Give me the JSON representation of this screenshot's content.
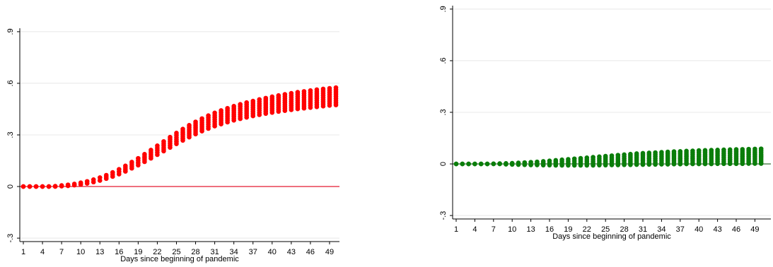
{
  "chart_data": [
    {
      "type": "scatter",
      "title": "",
      "xlabel": "Days since beginning of pandemic",
      "ylabel": "",
      "x_ticks": [
        "1",
        "4",
        "7",
        "10",
        "13",
        "16",
        "19",
        "22",
        "25",
        "28",
        "31",
        "34",
        "37",
        "40",
        "43",
        "46",
        "49"
      ],
      "y_ticks": [
        "-.3",
        "0",
        ".3",
        ".6",
        ".9"
      ],
      "xlim": [
        1,
        50
      ],
      "ylim": [
        -0.32,
        0.92
      ],
      "grid": "horizontal",
      "legend": "none",
      "marker_color": "#ff0000",
      "reference_line": {
        "y": 0,
        "color": "#e0001a"
      },
      "series": [
        {
          "x": [
            1,
            2,
            3,
            4,
            5,
            6,
            7,
            8,
            9,
            10,
            11,
            12,
            13,
            14,
            15,
            16,
            17,
            18,
            19,
            20,
            21,
            22,
            23,
            24,
            25,
            26,
            27,
            28,
            29,
            30,
            31,
            32,
            33,
            34,
            35,
            36,
            37,
            38,
            39,
            40,
            41,
            42,
            43,
            44,
            45,
            46,
            47,
            48,
            49,
            50
          ],
          "min": [
            0,
            0,
            0,
            0,
            0,
            0,
            0.002,
            0.004,
            0.008,
            0.012,
            0.018,
            0.026,
            0.035,
            0.046,
            0.058,
            0.072,
            0.088,
            0.106,
            0.124,
            0.144,
            0.164,
            0.185,
            0.206,
            0.227,
            0.248,
            0.268,
            0.287,
            0.305,
            0.322,
            0.337,
            0.351,
            0.363,
            0.374,
            0.385,
            0.394,
            0.402,
            0.41,
            0.417,
            0.424,
            0.43,
            0.436,
            0.441,
            0.446,
            0.451,
            0.455,
            0.459,
            0.463,
            0.467,
            0.471,
            0.474
          ],
          "max": [
            0,
            0,
            0,
            0,
            0,
            0.002,
            0.006,
            0.01,
            0.015,
            0.022,
            0.03,
            0.04,
            0.052,
            0.066,
            0.082,
            0.1,
            0.12,
            0.142,
            0.164,
            0.188,
            0.212,
            0.237,
            0.262,
            0.287,
            0.311,
            0.334,
            0.356,
            0.376,
            0.395,
            0.412,
            0.428,
            0.442,
            0.455,
            0.467,
            0.478,
            0.488,
            0.497,
            0.506,
            0.514,
            0.522,
            0.529,
            0.536,
            0.542,
            0.548,
            0.553,
            0.558,
            0.563,
            0.567,
            0.571,
            0.575
          ]
        }
      ]
    },
    {
      "type": "scatter",
      "title": "",
      "xlabel": "Days since beginning of pandemic",
      "ylabel": "",
      "x_ticks": [
        "1",
        "4",
        "7",
        "10",
        "13",
        "16",
        "19",
        "22",
        "25",
        "28",
        "31",
        "34",
        "37",
        "40",
        "43",
        "46",
        "49"
      ],
      "y_ticks": [
        "-.3",
        "0",
        ".3",
        ".6",
        ".9"
      ],
      "xlim": [
        1,
        51
      ],
      "ylim": [
        -0.32,
        0.92
      ],
      "grid": "horizontal",
      "legend": "none",
      "marker_color": "#0a7d0a",
      "reference_line": {
        "y": 0,
        "color": "#1a5c1a"
      },
      "series": [
        {
          "x": [
            1,
            2,
            3,
            4,
            5,
            6,
            7,
            8,
            9,
            10,
            11,
            12,
            13,
            14,
            15,
            16,
            17,
            18,
            19,
            20,
            21,
            22,
            23,
            24,
            25,
            26,
            27,
            28,
            29,
            30,
            31,
            32,
            33,
            34,
            35,
            36,
            37,
            38,
            39,
            40,
            41,
            42,
            43,
            44,
            45,
            46,
            47,
            48,
            49,
            50
          ],
          "min": [
            0,
            0,
            0,
            0,
            0,
            0,
            0,
            0,
            -0.002,
            -0.003,
            -0.004,
            -0.005,
            -0.006,
            -0.006,
            -0.007,
            -0.007,
            -0.008,
            -0.008,
            -0.008,
            -0.008,
            -0.008,
            -0.008,
            -0.008,
            -0.007,
            -0.007,
            -0.006,
            -0.006,
            -0.005,
            -0.005,
            -0.004,
            -0.004,
            -0.003,
            -0.003,
            -0.002,
            -0.002,
            -0.001,
            -0.001,
            0,
            0,
            0,
            0,
            0,
            0.001,
            0.001,
            0.001,
            0.001,
            0.001,
            0.002,
            0.002,
            0.002
          ],
          "max": [
            0,
            0,
            0,
            0,
            0,
            0,
            0.001,
            0.002,
            0.003,
            0.004,
            0.006,
            0.008,
            0.01,
            0.012,
            0.015,
            0.018,
            0.021,
            0.024,
            0.027,
            0.03,
            0.033,
            0.036,
            0.039,
            0.042,
            0.045,
            0.048,
            0.051,
            0.054,
            0.057,
            0.06,
            0.062,
            0.064,
            0.066,
            0.068,
            0.07,
            0.072,
            0.073,
            0.075,
            0.076,
            0.078,
            0.079,
            0.08,
            0.081,
            0.082,
            0.083,
            0.084,
            0.085,
            0.086,
            0.087,
            0.088
          ]
        }
      ]
    }
  ]
}
